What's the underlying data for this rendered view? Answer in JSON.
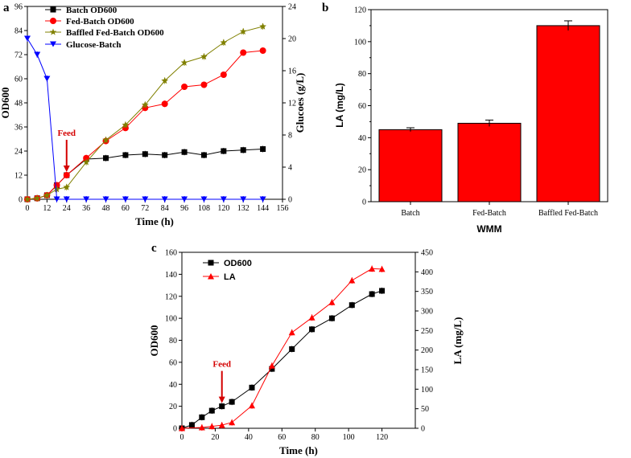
{
  "colors": {
    "batch": "#000000",
    "fed": "#ff0000",
    "baffled": "#808000",
    "glucose": "#0000ff",
    "bar": "#ff0000",
    "arrow": "#d40000"
  },
  "chart_data": [
    {
      "panel": "a",
      "type": "line",
      "xlabel": "Time (h)",
      "ylabel": "OD600",
      "y2label": "Glucoes (g/L)",
      "xlim": [
        0,
        156
      ],
      "xticks": [
        0,
        12,
        24,
        36,
        48,
        60,
        72,
        84,
        96,
        108,
        120,
        132,
        144,
        156
      ],
      "ylim": [
        0,
        96
      ],
      "yticks": [
        0,
        12,
        24,
        36,
        48,
        60,
        72,
        84,
        96
      ],
      "y2lim": [
        0,
        24
      ],
      "y2ticks": [
        0,
        4,
        8,
        12,
        16,
        20,
        24
      ],
      "annotation": {
        "label": "Feed",
        "x": 24
      },
      "series": [
        {
          "name": "Batch OD600",
          "axis": "left",
          "marker": "square",
          "color": "#000000",
          "x": [
            0,
            6,
            12,
            18,
            24,
            36,
            48,
            60,
            72,
            84,
            96,
            108,
            120,
            132,
            144
          ],
          "y": [
            0,
            0.5,
            2,
            7,
            12,
            20,
            20.5,
            22,
            22.5,
            22,
            23.5,
            22,
            24,
            24.5,
            25
          ]
        },
        {
          "name": "Fed-Batch OD600",
          "axis": "left",
          "marker": "circle",
          "color": "#ff0000",
          "x": [
            0,
            6,
            12,
            18,
            24,
            36,
            48,
            60,
            72,
            84,
            96,
            108,
            120,
            132,
            144
          ],
          "y": [
            0,
            0.5,
            2,
            7,
            12,
            20.5,
            29,
            35.5,
            45.5,
            47.5,
            56,
            57,
            62,
            73,
            74
          ]
        },
        {
          "name": "Baffled Fed-Batch OD600",
          "axis": "left",
          "marker": "star",
          "color": "#808000",
          "x": [
            0,
            6,
            12,
            18,
            24,
            36,
            48,
            60,
            72,
            84,
            96,
            108,
            120,
            132,
            144
          ],
          "y": [
            0,
            0.5,
            2,
            5,
            6,
            18.5,
            29.5,
            37,
            47,
            59,
            68,
            71,
            78,
            83.5,
            86
          ]
        },
        {
          "name": "Glucose-Batch",
          "axis": "right",
          "marker": "triangle-down",
          "color": "#0000ff",
          "x": [
            0,
            6,
            12,
            18,
            24,
            36,
            48,
            60,
            72,
            84,
            96,
            108,
            120,
            132,
            144
          ],
          "y": [
            20,
            18,
            15,
            0,
            0,
            0,
            0,
            0,
            0,
            0,
            0,
            0,
            0,
            0,
            0
          ]
        }
      ]
    },
    {
      "panel": "b",
      "type": "bar",
      "xlabel": "WMM",
      "ylabel": "LA (mg/L)",
      "ylim": [
        0,
        120
      ],
      "yticks": [
        0,
        20,
        40,
        60,
        80,
        100,
        120
      ],
      "categories": [
        "Batch",
        "Fed-Batch",
        "Baffled Fed-Batch"
      ],
      "values": [
        45,
        49,
        110
      ],
      "errors": [
        1.2,
        2,
        3
      ]
    },
    {
      "panel": "c",
      "type": "line",
      "xlabel": "Time (h)",
      "ylabel": "OD600",
      "y2label": "LA (mg/L)",
      "xlim": [
        0,
        140
      ],
      "xticks": [
        0,
        20,
        40,
        60,
        80,
        100,
        120
      ],
      "ylim": [
        0,
        160
      ],
      "yticks": [
        0,
        20,
        40,
        60,
        80,
        100,
        120,
        140,
        160
      ],
      "y2lim": [
        0,
        450
      ],
      "y2ticks": [
        0,
        50,
        100,
        150,
        200,
        250,
        300,
        350,
        400,
        450
      ],
      "annotation": {
        "label": "Feed",
        "x": 24
      },
      "series": [
        {
          "name": "OD600",
          "axis": "left",
          "marker": "square",
          "color": "#000000",
          "x": [
            0,
            6,
            12,
            18,
            24,
            30,
            42,
            54,
            66,
            78,
            90,
            102,
            114,
            120
          ],
          "y": [
            0,
            3,
            10,
            16,
            20,
            24,
            37,
            54,
            72,
            90,
            100,
            112,
            122,
            125
          ]
        },
        {
          "name": "LA",
          "axis": "right",
          "marker": "triangle-up",
          "color": "#ff0000",
          "x": [
            0,
            12,
            18,
            24,
            30,
            42,
            54,
            66,
            78,
            90,
            102,
            114,
            120
          ],
          "y": [
            0,
            2,
            5,
            8,
            15,
            58,
            160,
            245,
            283,
            322,
            378,
            408,
            407
          ]
        }
      ]
    }
  ]
}
